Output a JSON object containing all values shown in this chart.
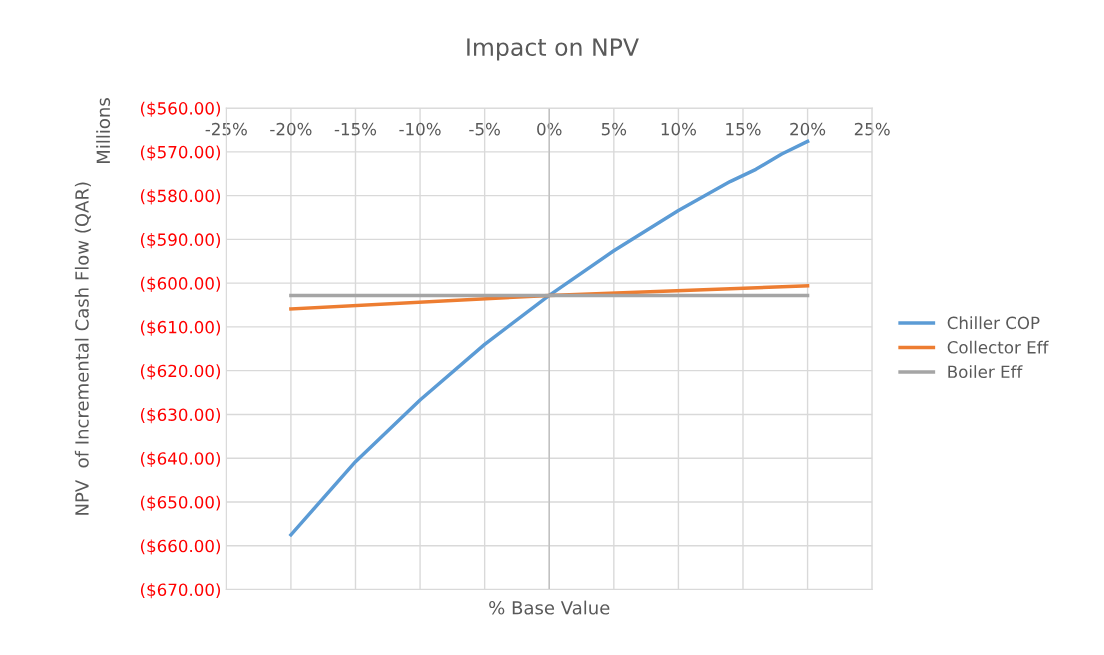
{
  "chart_data": {
    "type": "line",
    "title": "Impact on NPV",
    "xlabel": "% Base Value",
    "ylabel": "NPV  of Incremental Cash Flow (QAR)",
    "annotations": [
      "Millions"
    ],
    "series": [
      {
        "name": "Chiller COP",
        "color": "#5b9bd5",
        "x": [
          -20,
          -15,
          -10,
          -5,
          0,
          5,
          10,
          14,
          16,
          18,
          20
        ],
        "values": [
          -657.5,
          -640.8,
          -626.7,
          -614.0,
          -602.8,
          -592.6,
          -583.4,
          -576.8,
          -574.0,
          -570.5,
          -567.6
        ]
      },
      {
        "name": "Collector Eff",
        "color": "#ed7d31",
        "x": [
          -20,
          0,
          20
        ],
        "values": [
          -605.9,
          -602.8,
          -600.6
        ]
      },
      {
        "name": "Boiler Eff",
        "color": "#a5a5a5",
        "x": [
          -20,
          0,
          20
        ],
        "values": [
          -602.8,
          -602.8,
          -602.8
        ]
      }
    ],
    "xlim": [
      -25,
      25
    ],
    "xticks": [
      {
        "value": -25,
        "label": "-25%"
      },
      {
        "value": -20,
        "label": "-20%"
      },
      {
        "value": -15,
        "label": "-15%"
      },
      {
        "value": -10,
        "label": "-10%"
      },
      {
        "value": -5,
        "label": "-5%"
      },
      {
        "value": 0,
        "label": "0%"
      },
      {
        "value": 5,
        "label": "5%"
      },
      {
        "value": 10,
        "label": "10%"
      },
      {
        "value": 15,
        "label": "15%"
      },
      {
        "value": 20,
        "label": "20%"
      },
      {
        "value": 25,
        "label": "25%"
      }
    ],
    "ylim": [
      -670,
      -560
    ],
    "yticks": [
      {
        "value": -560,
        "label": "($560.00)"
      },
      {
        "value": -570,
        "label": "($570.00)"
      },
      {
        "value": -580,
        "label": "($580.00)"
      },
      {
        "value": -590,
        "label": "($590.00)"
      },
      {
        "value": -600,
        "label": "($600.00)"
      },
      {
        "value": -610,
        "label": "($610.00)"
      },
      {
        "value": -620,
        "label": "($620.00)"
      },
      {
        "value": -630,
        "label": "($630.00)"
      },
      {
        "value": -640,
        "label": "($640.00)"
      },
      {
        "value": -650,
        "label": "($650.00)"
      },
      {
        "value": -660,
        "label": "($660.00)"
      },
      {
        "value": -670,
        "label": "($670.00)"
      }
    ],
    "grid": true,
    "legend": "right",
    "marker": "none",
    "line_style": "solid"
  }
}
